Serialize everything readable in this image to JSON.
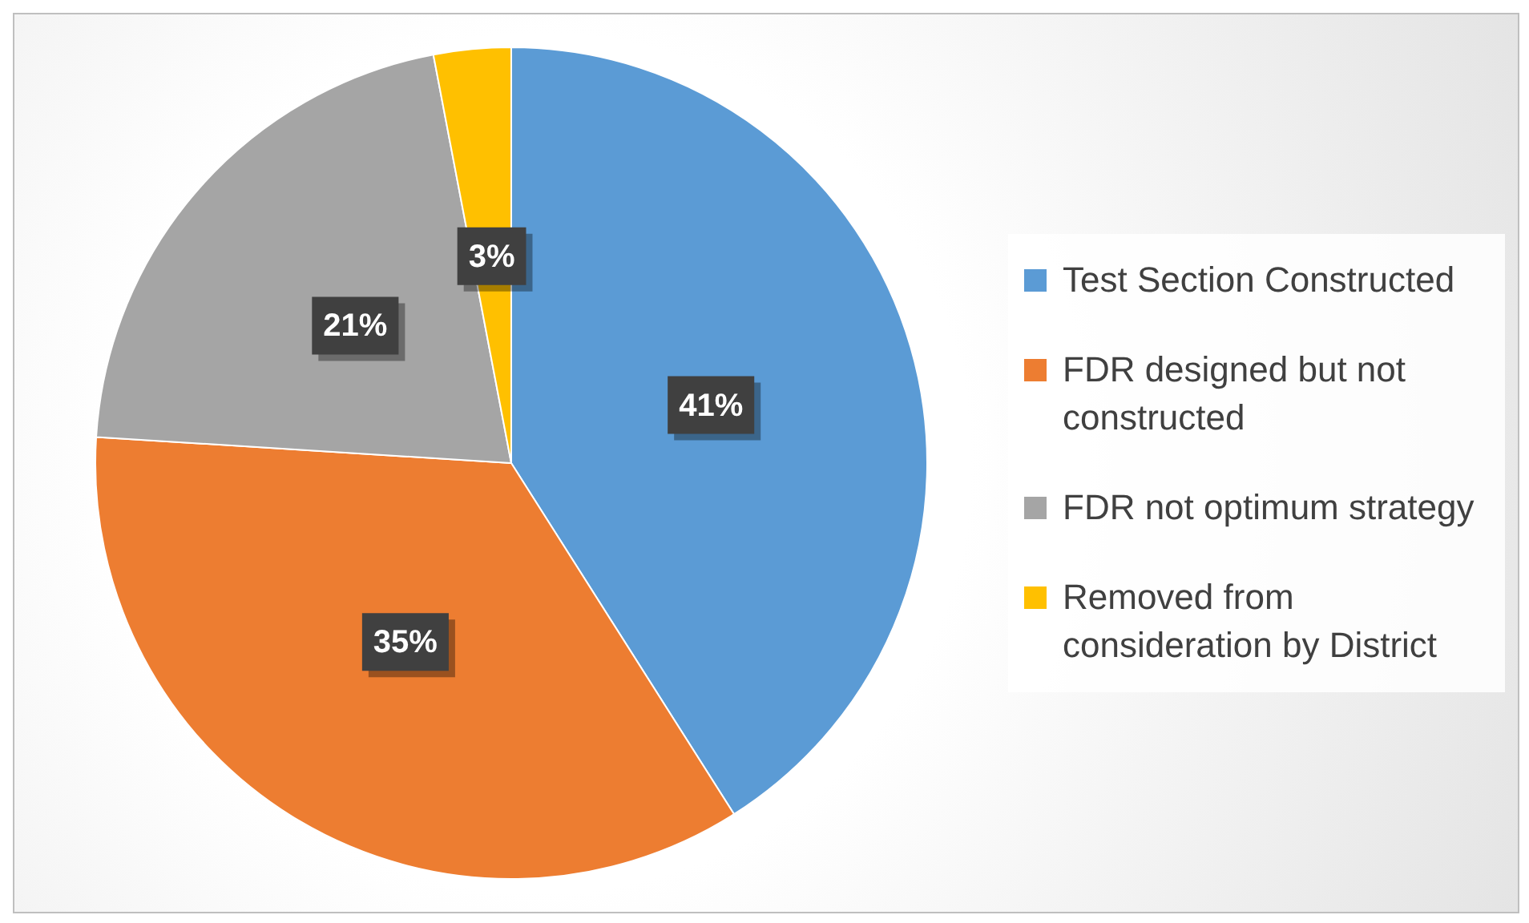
{
  "chart_data": {
    "type": "pie",
    "categories": [
      "Test Section Constructed",
      "FDR designed but not constructed",
      "FDR not optimum strategy",
      "Removed from consideration by District"
    ],
    "values": [
      41,
      35,
      21,
      3
    ],
    "colors": [
      "#5b9bd5",
      "#ed7d31",
      "#a5a5a5",
      "#ffc000"
    ],
    "value_labels": [
      "41%",
      "35%",
      "21%",
      "3%"
    ],
    "legend": "right"
  }
}
